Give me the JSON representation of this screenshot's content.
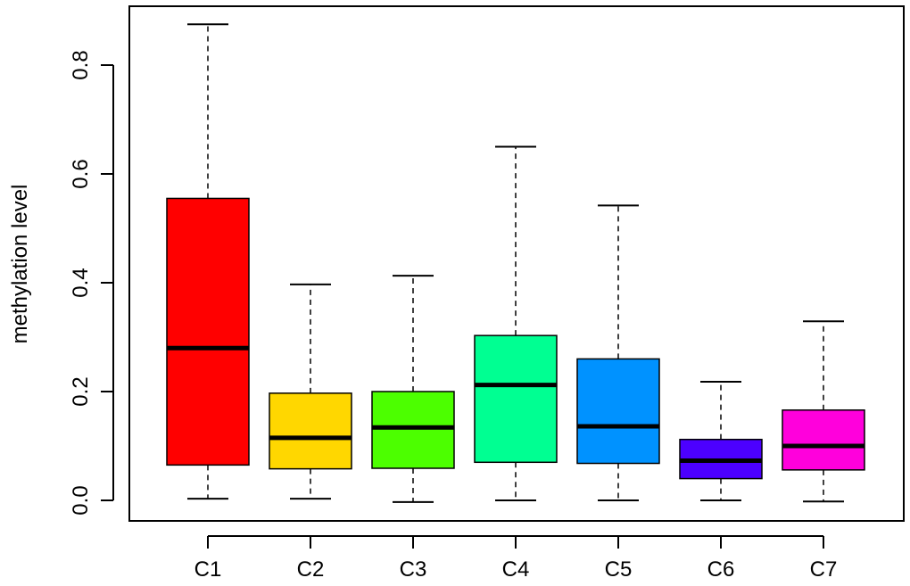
{
  "chart_data": {
    "type": "boxplot",
    "title": "",
    "xlabel": "",
    "ylabel": "methylation level",
    "ylim": [
      -0.04,
      0.9
    ],
    "yticks": [
      0.0,
      0.2,
      0.4,
      0.6,
      0.8
    ],
    "ytick_labels": [
      "0.0",
      "0.2",
      "0.4",
      "0.6",
      "0.8"
    ],
    "grid": false,
    "legend": "none",
    "categories": [
      "C1",
      "C2",
      "C3",
      "C4",
      "C5",
      "C6",
      "C7"
    ],
    "boxes": [
      {
        "category": "C1",
        "color": "#ff0000",
        "whisker_low": 0.003,
        "q1": 0.065,
        "median": 0.28,
        "q3": 0.555,
        "whisker_high": 0.875
      },
      {
        "category": "C2",
        "color": "#ffd700",
        "whisker_low": 0.003,
        "q1": 0.058,
        "median": 0.115,
        "q3": 0.197,
        "whisker_high": 0.397
      },
      {
        "category": "C3",
        "color": "#4cff00",
        "whisker_low": -0.003,
        "q1": 0.059,
        "median": 0.134,
        "q3": 0.2,
        "whisker_high": 0.413
      },
      {
        "category": "C4",
        "color": "#00ff92",
        "whisker_low": 0.0,
        "q1": 0.07,
        "median": 0.212,
        "q3": 0.303,
        "whisker_high": 0.65
      },
      {
        "category": "C5",
        "color": "#0092ff",
        "whisker_low": 0.0,
        "q1": 0.068,
        "median": 0.136,
        "q3": 0.26,
        "whisker_high": 0.542
      },
      {
        "category": "C6",
        "color": "#4c00ff",
        "whisker_low": 0.0,
        "q1": 0.04,
        "median": 0.073,
        "q3": 0.112,
        "whisker_high": 0.218
      },
      {
        "category": "C7",
        "color": "#ff00dc",
        "whisker_low": -0.002,
        "q1": 0.056,
        "median": 0.1,
        "q3": 0.166,
        "whisker_high": 0.329
      }
    ]
  }
}
